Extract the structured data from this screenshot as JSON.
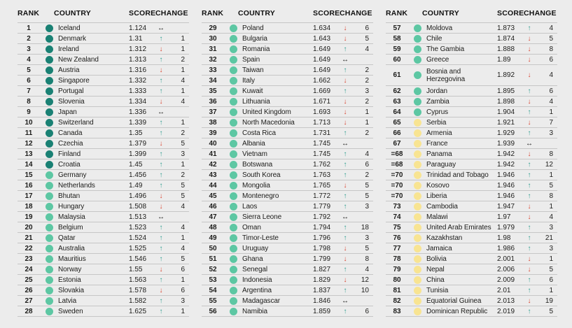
{
  "page": {
    "background": "#ececec",
    "row_line_color": "#c6c6c6",
    "text_color": "#1d1d1b"
  },
  "table": {
    "headers": {
      "rank": "RANK",
      "country": "COUNTRY",
      "score": "SCORE",
      "change": "CHANGE"
    },
    "tier_colors": {
      "vh": "#1a8174",
      "h": "#5dc7a3",
      "m": "#f8e492"
    },
    "arrow_colors": {
      "up": "#2e9d8e",
      "down": "#d8432e",
      "same": "#1d1d1b"
    },
    "icons": {
      "up": "↑",
      "down": "↓",
      "same": "↔"
    },
    "row_fields": [
      "rank",
      "country",
      "score",
      "tier",
      "change_dir",
      "change_value"
    ],
    "columns": [
      {
        "rows": [
          [
            "1",
            "Iceland",
            "1.124",
            "vh",
            "same",
            ""
          ],
          [
            "2",
            "Denmark",
            "1.31",
            "vh",
            "up",
            "1"
          ],
          [
            "3",
            "Ireland",
            "1.312",
            "vh",
            "down",
            "1"
          ],
          [
            "4",
            "New Zealand",
            "1.313",
            "vh",
            "up",
            "2"
          ],
          [
            "5",
            "Austria",
            "1.316",
            "vh",
            "down",
            "1"
          ],
          [
            "6",
            "Singapore",
            "1.332",
            "vh",
            "up",
            "4"
          ],
          [
            "7",
            "Portugal",
            "1.333",
            "vh",
            "up",
            "1"
          ],
          [
            "8",
            "Slovenia",
            "1.334",
            "vh",
            "down",
            "4"
          ],
          [
            "9",
            "Japan",
            "1.336",
            "vh",
            "same",
            ""
          ],
          [
            "10",
            "Switzerland",
            "1.339",
            "vh",
            "up",
            "1"
          ],
          [
            "11",
            "Canada",
            "1.35",
            "vh",
            "up",
            "2"
          ],
          [
            "12",
            "Czechia",
            "1.379",
            "vh",
            "down",
            "5"
          ],
          [
            "13",
            "Finland",
            "1.399",
            "vh",
            "up",
            "3"
          ],
          [
            "14",
            "Croatia",
            "1.45",
            "vh",
            "up",
            "1"
          ],
          [
            "15",
            "Germany",
            "1.456",
            "h",
            "up",
            "2"
          ],
          [
            "16",
            "Netherlands",
            "1.49",
            "h",
            "up",
            "5"
          ],
          [
            "17",
            "Bhutan",
            "1.496",
            "h",
            "down",
            "5"
          ],
          [
            "18",
            "Hungary",
            "1.508",
            "h",
            "down",
            "4"
          ],
          [
            "19",
            "Malaysia",
            "1.513",
            "h",
            "same",
            ""
          ],
          [
            "20",
            "Belgium",
            "1.523",
            "h",
            "up",
            "4"
          ],
          [
            "21",
            "Qatar",
            "1.524",
            "h",
            "up",
            "1"
          ],
          [
            "22",
            "Australia",
            "1.525",
            "h",
            "up",
            "4"
          ],
          [
            "23",
            "Mauritius",
            "1.546",
            "h",
            "up",
            "5"
          ],
          [
            "24",
            "Norway",
            "1.55",
            "h",
            "down",
            "6"
          ],
          [
            "25",
            "Estonia",
            "1.563",
            "h",
            "up",
            "1"
          ],
          [
            "26",
            "Slovakia",
            "1.578",
            "h",
            "down",
            "6"
          ],
          [
            "27",
            "Latvia",
            "1.582",
            "h",
            "up",
            "3"
          ],
          [
            "28",
            "Sweden",
            "1.625",
            "h",
            "up",
            "1"
          ]
        ]
      },
      {
        "rows": [
          [
            "29",
            "Poland",
            "1.634",
            "h",
            "down",
            "6"
          ],
          [
            "30",
            "Bulgaria",
            "1.643",
            "h",
            "down",
            "5"
          ],
          [
            "31",
            "Romania",
            "1.649",
            "h",
            "up",
            "4"
          ],
          [
            "32",
            "Spain",
            "1.649",
            "h",
            "same",
            ""
          ],
          [
            "33",
            "Taiwan",
            "1.649",
            "h",
            "up",
            "2"
          ],
          [
            "34",
            "Italy",
            "1.662",
            "h",
            "down",
            "2"
          ],
          [
            "35",
            "Kuwait",
            "1.669",
            "h",
            "up",
            "3"
          ],
          [
            "36",
            "Lithuania",
            "1.671",
            "h",
            "down",
            "2"
          ],
          [
            "37",
            "United Kingdom",
            "1.693",
            "h",
            "down",
            "1"
          ],
          [
            "38",
            "North Macedonia",
            "1.713",
            "h",
            "down",
            "1"
          ],
          [
            "39",
            "Costa Rica",
            "1.731",
            "h",
            "up",
            "2"
          ],
          [
            "40",
            "Albania",
            "1.745",
            "h",
            "same",
            ""
          ],
          [
            "41",
            "Vietnam",
            "1.745",
            "h",
            "up",
            "4"
          ],
          [
            "42",
            "Botswana",
            "1.762",
            "h",
            "up",
            "6"
          ],
          [
            "43",
            "South Korea",
            "1.763",
            "h",
            "up",
            "2"
          ],
          [
            "44",
            "Mongolia",
            "1.765",
            "h",
            "down",
            "5"
          ],
          [
            "45",
            "Montenegro",
            "1.772",
            "h",
            "up",
            "5"
          ],
          [
            "46",
            "Laos",
            "1.779",
            "h",
            "up",
            "3"
          ],
          [
            "47",
            "Sierra Leone",
            "1.792",
            "h",
            "same",
            ""
          ],
          [
            "48",
            "Oman",
            "1.794",
            "h",
            "up",
            "18"
          ],
          [
            "49",
            "Timor-Leste",
            "1.796",
            "h",
            "up",
            "3"
          ],
          [
            "50",
            "Uruguay",
            "1.798",
            "h",
            "down",
            "5"
          ],
          [
            "51",
            "Ghana",
            "1.799",
            "h",
            "down",
            "8"
          ],
          [
            "52",
            "Senegal",
            "1.827",
            "h",
            "up",
            "4"
          ],
          [
            "53",
            "Indonesia",
            "1.829",
            "h",
            "down",
            "12"
          ],
          [
            "54",
            "Argentina",
            "1.837",
            "h",
            "up",
            "10"
          ],
          [
            "55",
            "Madagascar",
            "1.846",
            "h",
            "same",
            ""
          ],
          [
            "56",
            "Namibia",
            "1.859",
            "h",
            "up",
            "6"
          ]
        ]
      },
      {
        "rows": [
          [
            "57",
            "Moldova",
            "1.873",
            "h",
            "up",
            "4"
          ],
          [
            "58",
            "Chile",
            "1.874",
            "h",
            "down",
            "5"
          ],
          [
            "59",
            "The Gambia",
            "1.888",
            "h",
            "down",
            "8"
          ],
          [
            "60",
            "Greece",
            "1.89",
            "h",
            "down",
            "6"
          ],
          [
            "61",
            "Bosnia and Herzegovina",
            "1.892",
            "h",
            "down",
            "4"
          ],
          [
            "62",
            "Jordan",
            "1.895",
            "h",
            "up",
            "6"
          ],
          [
            "63",
            "Zambia",
            "1.898",
            "h",
            "down",
            "4"
          ],
          [
            "64",
            "Cyprus",
            "1.904",
            "h",
            "up",
            "1"
          ],
          [
            "65",
            "Serbia",
            "1.921",
            "m",
            "down",
            "7"
          ],
          [
            "66",
            "Armenia",
            "1.929",
            "m",
            "up",
            "3"
          ],
          [
            "67",
            "France",
            "1.939",
            "m",
            "same",
            ""
          ],
          [
            "=68",
            "Panama",
            "1.942",
            "m",
            "down",
            "8"
          ],
          [
            "=68",
            "Paraguay",
            "1.942",
            "m",
            "up",
            "12"
          ],
          [
            "=70",
            "Trinidad and Tobago",
            "1.946",
            "m",
            "up",
            "1"
          ],
          [
            "=70",
            "Kosovo",
            "1.946",
            "m",
            "up",
            "5"
          ],
          [
            "=70",
            "Liberia",
            "1.946",
            "m",
            "up",
            "8"
          ],
          [
            "73",
            "Cambodia",
            "1.947",
            "m",
            "down",
            "1"
          ],
          [
            "74",
            "Malawi",
            "1.97",
            "m",
            "down",
            "4"
          ],
          [
            "75",
            "United Arab Emirates",
            "1.979",
            "m",
            "up",
            "3"
          ],
          [
            "76",
            "Kazakhstan",
            "1.98",
            "m",
            "up",
            "21"
          ],
          [
            "77",
            "Jamaica",
            "1.986",
            "m",
            "up",
            "3"
          ],
          [
            "78",
            "Bolivia",
            "2.001",
            "m",
            "down",
            "1"
          ],
          [
            "79",
            "Nepal",
            "2.006",
            "m",
            "down",
            "5"
          ],
          [
            "80",
            "China",
            "2.009",
            "m",
            "up",
            "6"
          ],
          [
            "81",
            "Tunisia",
            "2.01",
            "m",
            "up",
            "1"
          ],
          [
            "82",
            "Equatorial Guinea",
            "2.013",
            "m",
            "down",
            "19"
          ],
          [
            "83",
            "Dominican Republic",
            "2.019",
            "m",
            "up",
            "5"
          ]
        ]
      }
    ]
  }
}
